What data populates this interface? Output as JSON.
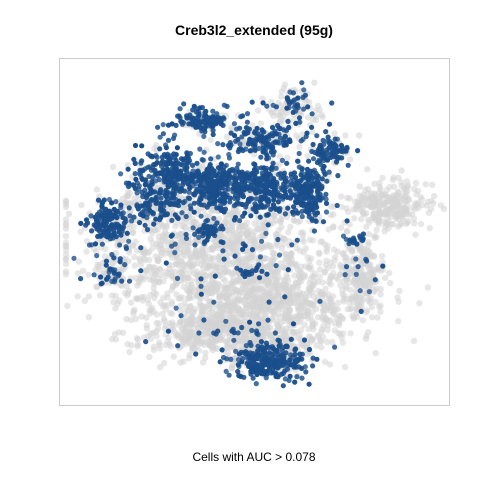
{
  "chart_data": {
    "type": "scatter",
    "title": "Creb3l2_extended (95g)",
    "xlabel": "Cells with AUC > 0.078",
    "ylabel": "",
    "grid": false,
    "legend": "none",
    "colors": {
      "active": "#1a4f8c",
      "background_cells": "#d3d3d3",
      "frame": "#cccccc"
    },
    "clusters": [
      {
        "cx": 0.38,
        "cy": 0.55,
        "rx": 0.33,
        "ry": 0.22,
        "n": 1300,
        "active_frac": 0.05
      },
      {
        "cx": 0.55,
        "cy": 0.72,
        "rx": 0.25,
        "ry": 0.12,
        "n": 600,
        "active_frac": 0.0
      },
      {
        "cx": 0.4,
        "cy": 0.8,
        "rx": 0.18,
        "ry": 0.08,
        "n": 400,
        "active_frac": 0.05
      },
      {
        "cx": 0.85,
        "cy": 0.42,
        "rx": 0.11,
        "ry": 0.07,
        "n": 260,
        "active_frac": 0.0
      },
      {
        "cx": 0.78,
        "cy": 0.62,
        "rx": 0.06,
        "ry": 0.12,
        "n": 200,
        "active_frac": 0.05
      },
      {
        "cx": 0.55,
        "cy": 0.85,
        "rx": 0.12,
        "ry": 0.06,
        "n": 200,
        "active_frac": 0.05
      },
      {
        "cx": 0.6,
        "cy": 0.12,
        "rx": 0.08,
        "ry": 0.06,
        "n": 120,
        "active_frac": 0.3
      },
      {
        "cx": 0.28,
        "cy": 0.32,
        "rx": 0.1,
        "ry": 0.08,
        "n": 300,
        "active_frac": 0.85
      },
      {
        "cx": 0.4,
        "cy": 0.36,
        "rx": 0.08,
        "ry": 0.07,
        "n": 280,
        "active_frac": 0.85
      },
      {
        "cx": 0.52,
        "cy": 0.36,
        "rx": 0.08,
        "ry": 0.08,
        "n": 300,
        "active_frac": 0.85
      },
      {
        "cx": 0.64,
        "cy": 0.38,
        "rx": 0.05,
        "ry": 0.08,
        "n": 220,
        "active_frac": 0.85
      },
      {
        "cx": 0.11,
        "cy": 0.47,
        "rx": 0.05,
        "ry": 0.07,
        "n": 180,
        "active_frac": 0.8
      },
      {
        "cx": 0.24,
        "cy": 0.42,
        "rx": 0.07,
        "ry": 0.06,
        "n": 160,
        "active_frac": 0.6
      },
      {
        "cx": 0.36,
        "cy": 0.16,
        "rx": 0.09,
        "ry": 0.04,
        "n": 150,
        "active_frac": 0.75
      },
      {
        "cx": 0.52,
        "cy": 0.22,
        "rx": 0.1,
        "ry": 0.04,
        "n": 170,
        "active_frac": 0.75
      },
      {
        "cx": 0.7,
        "cy": 0.25,
        "rx": 0.05,
        "ry": 0.05,
        "n": 110,
        "active_frac": 0.8
      },
      {
        "cx": 0.53,
        "cy": 0.89,
        "rx": 0.1,
        "ry": 0.06,
        "n": 260,
        "active_frac": 0.9
      },
      {
        "cx": 0.36,
        "cy": 0.5,
        "rx": 0.05,
        "ry": 0.04,
        "n": 60,
        "active_frac": 0.6
      },
      {
        "cx": 0.12,
        "cy": 0.62,
        "rx": 0.05,
        "ry": 0.05,
        "n": 70,
        "active_frac": 0.35
      },
      {
        "cx": 0.76,
        "cy": 0.52,
        "rx": 0.03,
        "ry": 0.02,
        "n": 18,
        "active_frac": 0.9
      },
      {
        "cx": 0.48,
        "cy": 0.62,
        "rx": 0.03,
        "ry": 0.02,
        "n": 25,
        "active_frac": 0.7
      }
    ]
  }
}
